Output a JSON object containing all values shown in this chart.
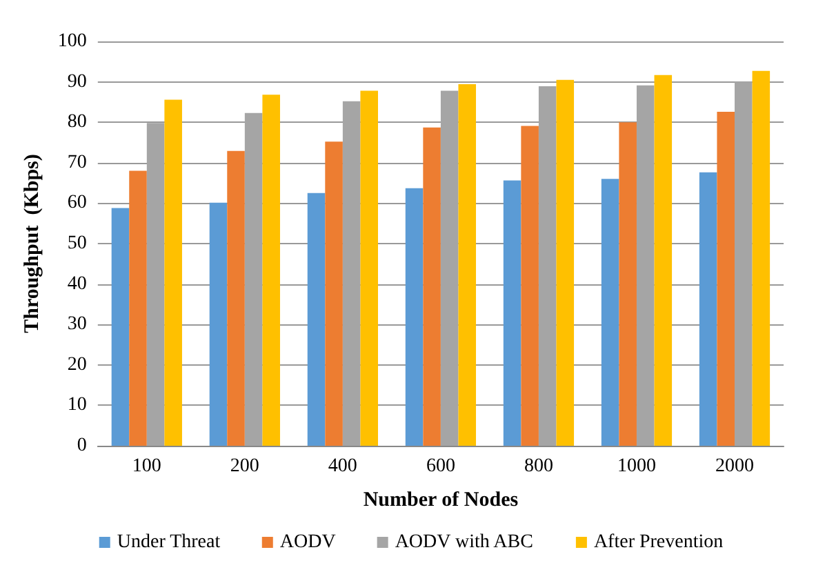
{
  "chart_data": {
    "type": "bar",
    "xlabel": "Number of Nodes",
    "ylabel": "Throughput  (Kbps)",
    "categories": [
      "100",
      "200",
      "400",
      "600",
      "800",
      "1000",
      "2000"
    ],
    "series": [
      {
        "name": "Under Threat",
        "color": "#5b9bd5",
        "values": [
          58.8,
          60.1,
          62.5,
          63.7,
          65.6,
          66.0,
          67.6
        ]
      },
      {
        "name": "AODV",
        "color": "#ed7d31",
        "values": [
          68.0,
          72.9,
          75.2,
          78.7,
          79.1,
          80.0,
          82.6
        ]
      },
      {
        "name": "AODV with ABC",
        "color": "#a5a5a5",
        "values": [
          79.8,
          82.3,
          85.2,
          87.8,
          88.9,
          89.1,
          90.0
        ]
      },
      {
        "name": "After Prevention",
        "color": "#ffc000",
        "values": [
          85.6,
          86.8,
          87.8,
          89.4,
          90.5,
          91.7,
          92.7
        ]
      }
    ],
    "ylim": [
      0,
      100
    ],
    "yticks": [
      0,
      10,
      20,
      30,
      40,
      50,
      60,
      70,
      80,
      90,
      100
    ],
    "grid": "y",
    "legend": "bottom"
  }
}
